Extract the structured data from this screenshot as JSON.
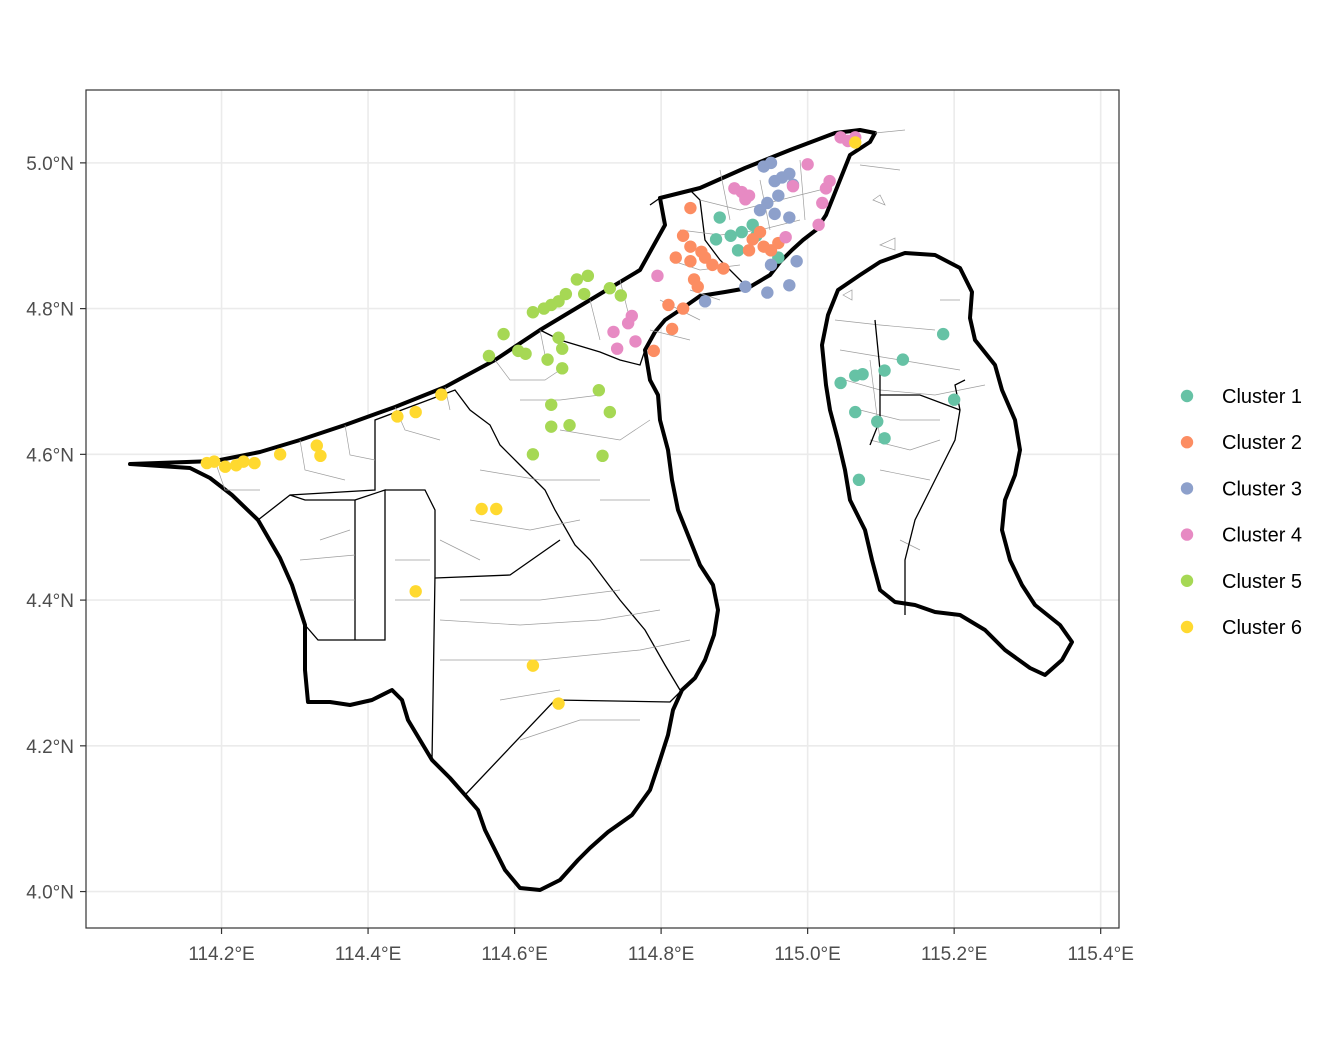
{
  "axes": {
    "x_ticks": [
      "114.2°E",
      "114.4°E",
      "114.6°E",
      "114.8°E",
      "115.0°E",
      "115.2°E",
      "115.4°E"
    ],
    "x_tick_values": [
      114.2,
      114.4,
      114.6,
      114.8,
      115.0,
      115.2,
      115.4
    ],
    "y_ticks": [
      "4.0°N",
      "4.2°N",
      "4.4°N",
      "4.6°N",
      "4.8°N",
      "5.0°N"
    ],
    "y_tick_values": [
      4.0,
      4.2,
      4.4,
      4.6,
      4.8,
      5.0
    ],
    "xlim": [
      114.015,
      115.425
    ],
    "ylim": [
      3.95,
      5.1
    ],
    "grid": true
  },
  "legend": {
    "position": "right",
    "items": [
      {
        "label": "Cluster 1",
        "color": "#66C2A5"
      },
      {
        "label": "Cluster 2",
        "color": "#FC8D62"
      },
      {
        "label": "Cluster 3",
        "color": "#8DA0CB"
      },
      {
        "label": "Cluster 4",
        "color": "#E78AC3"
      },
      {
        "label": "Cluster 5",
        "color": "#A6D854"
      },
      {
        "label": "Cluster 6",
        "color": "#FFD92F"
      }
    ]
  },
  "chart_data": {
    "type": "scatter",
    "series": [
      {
        "name": "Cluster 1",
        "color": "#66C2A5",
        "points": [
          [
            114.88,
            4.925
          ],
          [
            114.895,
            4.9
          ],
          [
            114.91,
            4.905
          ],
          [
            114.925,
            4.915
          ],
          [
            114.905,
            4.88
          ],
          [
            114.875,
            4.895
          ],
          [
            114.93,
            4.9
          ],
          [
            114.96,
            4.87
          ],
          [
            115.045,
            4.698
          ],
          [
            115.065,
            4.708
          ],
          [
            115.075,
            4.71
          ],
          [
            115.105,
            4.715
          ],
          [
            115.13,
            4.73
          ],
          [
            115.185,
            4.765
          ],
          [
            115.2,
            4.675
          ],
          [
            115.065,
            4.658
          ],
          [
            115.095,
            4.645
          ],
          [
            115.105,
            4.622
          ],
          [
            115.07,
            4.565
          ]
        ]
      },
      {
        "name": "Cluster 2",
        "color": "#FC8D62",
        "points": [
          [
            114.84,
            4.938
          ],
          [
            114.83,
            4.9
          ],
          [
            114.84,
            4.885
          ],
          [
            114.855,
            4.878
          ],
          [
            114.86,
            4.87
          ],
          [
            114.87,
            4.86
          ],
          [
            114.885,
            4.855
          ],
          [
            114.84,
            4.865
          ],
          [
            114.82,
            4.87
          ],
          [
            114.845,
            4.84
          ],
          [
            114.85,
            4.83
          ],
          [
            114.81,
            4.805
          ],
          [
            114.83,
            4.8
          ],
          [
            114.815,
            4.772
          ],
          [
            114.79,
            4.742
          ],
          [
            114.925,
            4.895
          ],
          [
            114.935,
            4.905
          ],
          [
            114.94,
            4.885
          ],
          [
            114.95,
            4.88
          ],
          [
            114.96,
            4.89
          ],
          [
            114.92,
            4.88
          ]
        ]
      },
      {
        "name": "Cluster 3",
        "color": "#8DA0CB",
        "points": [
          [
            114.94,
            4.995
          ],
          [
            114.95,
            5.0
          ],
          [
            114.955,
            4.975
          ],
          [
            114.965,
            4.98
          ],
          [
            114.975,
            4.985
          ],
          [
            114.98,
            4.97
          ],
          [
            114.96,
            4.955
          ],
          [
            114.945,
            4.945
          ],
          [
            114.935,
            4.935
          ],
          [
            114.955,
            4.93
          ],
          [
            114.975,
            4.925
          ],
          [
            114.95,
            4.86
          ],
          [
            114.985,
            4.865
          ],
          [
            114.975,
            4.832
          ],
          [
            114.945,
            4.822
          ],
          [
            114.915,
            4.83
          ],
          [
            114.86,
            4.81
          ]
        ]
      },
      {
        "name": "Cluster 4",
        "color": "#E78AC3",
        "points": [
          [
            114.9,
            4.965
          ],
          [
            114.91,
            4.96
          ],
          [
            114.915,
            4.95
          ],
          [
            114.92,
            4.955
          ],
          [
            114.98,
            4.968
          ],
          [
            115.0,
            4.998
          ],
          [
            115.025,
            4.965
          ],
          [
            115.03,
            4.975
          ],
          [
            115.045,
            5.035
          ],
          [
            115.055,
            5.03
          ],
          [
            115.065,
            5.035
          ],
          [
            115.02,
            4.945
          ],
          [
            115.015,
            4.915
          ],
          [
            114.97,
            4.898
          ],
          [
            114.795,
            4.845
          ],
          [
            114.76,
            4.79
          ],
          [
            114.755,
            4.78
          ],
          [
            114.735,
            4.768
          ],
          [
            114.74,
            4.745
          ],
          [
            114.765,
            4.755
          ]
        ]
      },
      {
        "name": "Cluster 5",
        "color": "#A6D854",
        "points": [
          [
            114.7,
            4.845
          ],
          [
            114.685,
            4.84
          ],
          [
            114.67,
            4.82
          ],
          [
            114.66,
            4.81
          ],
          [
            114.65,
            4.805
          ],
          [
            114.64,
            4.8
          ],
          [
            114.625,
            4.795
          ],
          [
            114.585,
            4.765
          ],
          [
            114.565,
            4.735
          ],
          [
            114.605,
            4.742
          ],
          [
            114.615,
            4.738
          ],
          [
            114.66,
            4.76
          ],
          [
            114.665,
            4.745
          ],
          [
            114.645,
            4.73
          ],
          [
            114.665,
            4.718
          ],
          [
            114.695,
            4.82
          ],
          [
            114.73,
            4.828
          ],
          [
            114.745,
            4.818
          ],
          [
            114.715,
            4.688
          ],
          [
            114.65,
            4.668
          ],
          [
            114.73,
            4.658
          ],
          [
            114.65,
            4.638
          ],
          [
            114.675,
            4.64
          ],
          [
            114.625,
            4.6
          ],
          [
            114.72,
            4.598
          ]
        ]
      },
      {
        "name": "Cluster 6",
        "color": "#FFD92F",
        "points": [
          [
            114.18,
            4.588
          ],
          [
            114.19,
            4.59
          ],
          [
            114.205,
            4.583
          ],
          [
            114.22,
            4.585
          ],
          [
            114.23,
            4.59
          ],
          [
            114.245,
            4.588
          ],
          [
            114.28,
            4.6
          ],
          [
            114.33,
            4.612
          ],
          [
            114.335,
            4.598
          ],
          [
            114.44,
            4.652
          ],
          [
            114.465,
            4.658
          ],
          [
            114.5,
            4.682
          ],
          [
            114.555,
            4.525
          ],
          [
            114.575,
            4.525
          ],
          [
            114.465,
            4.412
          ],
          [
            114.625,
            4.31
          ],
          [
            114.66,
            4.258
          ],
          [
            115.065,
            5.028
          ]
        ]
      }
    ]
  }
}
